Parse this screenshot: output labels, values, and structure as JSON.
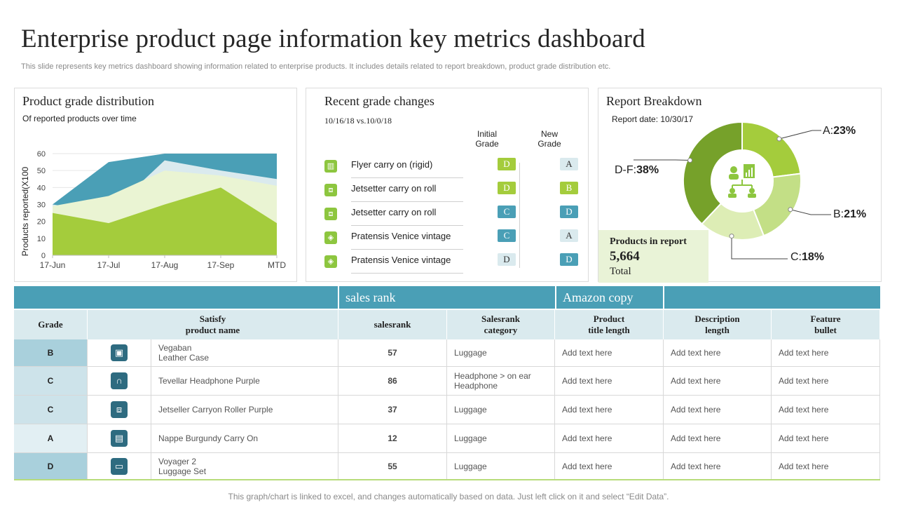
{
  "header": {
    "title": "Enterprise product page information key metrics dashboard",
    "subtitle": "This slide represents key metrics dashboard showing information related to enterprise products. It includes details related to report breakdown, product grade distribution etc."
  },
  "grade_distribution": {
    "title": "Product grade distribution",
    "subtitle": "Of reported products over time"
  },
  "chart_data": {
    "type": "area",
    "categories": [
      "17-Jun",
      "17-Jul",
      "17-Aug",
      "17-Sep",
      "MTD"
    ],
    "ylabel": "Products reported(X100",
    "ylim": [
      0,
      60
    ],
    "yticks": [
      0,
      10,
      20,
      30,
      40,
      50,
      60
    ],
    "grid": true,
    "series": [
      {
        "values": [
          30,
          55,
          60,
          60,
          60
        ],
        "color": "#4a9fb6"
      },
      {
        "values": [
          30,
          25,
          56,
          50,
          45
        ],
        "color": "#daeaee"
      },
      {
        "values": [
          29,
          35,
          50,
          47,
          41
        ],
        "color": "#eaf4d3"
      },
      {
        "values": [
          25,
          19,
          30,
          40,
          19
        ],
        "color": "#a4cc3c"
      }
    ]
  },
  "grade_changes": {
    "title": "Recent grade changes",
    "date_range": "10/16/18 vs.10/0/18",
    "initial_header": "Initial\nGrade",
    "new_header": "New\nGrade",
    "rows": [
      {
        "icon": "suitcase-icon",
        "glyph": "▥",
        "name": "Flyer carry on (rigid)",
        "initial": "D",
        "new": "A",
        "initial_style": "green",
        "new_style": "light"
      },
      {
        "icon": "luggage-icon",
        "glyph": "⧈",
        "name": "Jetsetter carry on roll",
        "initial": "D",
        "new": "B",
        "initial_style": "green",
        "new_style": "green"
      },
      {
        "icon": "luggage-icon",
        "glyph": "⧈",
        "name": "Jetsetter carry on roll",
        "initial": "C",
        "new": "D",
        "initial_style": "blue",
        "new_style": "blue"
      },
      {
        "icon": "tag-icon",
        "glyph": "◈",
        "name": "Pratensis Venice vintage",
        "initial": "C",
        "new": "A",
        "initial_style": "blue",
        "new_style": "light"
      },
      {
        "icon": "tag-icon",
        "glyph": "◈",
        "name": "Pratensis Venice vintage",
        "initial": "D",
        "new": "D",
        "initial_style": "light",
        "new_style": "blue"
      }
    ]
  },
  "report_breakdown": {
    "title": "Report Breakdown",
    "report_date": "Report date:  10/30/17",
    "slices": [
      {
        "label": "A:",
        "pct": "23%",
        "value": 23,
        "color": "#a4cc3c"
      },
      {
        "label": "B:",
        "pct": "21%",
        "value": 21,
        "color": "#c3df86"
      },
      {
        "label": "C:",
        "pct": "18%",
        "value": 18,
        "color": "#ddedb5"
      },
      {
        "label": "D-F:",
        "pct": "38%",
        "value": 38,
        "color": "#76a12a"
      }
    ],
    "products_title": "Products in report",
    "products_value": "5,664",
    "products_sub": "Total"
  },
  "table": {
    "band": {
      "sales_rank": "sales rank",
      "amazon_copy": "Amazon copy"
    },
    "headers": [
      "Grade",
      "Satisfy\nproduct name",
      "salesrank",
      "Salesrank\ncategory",
      "Product\ntitle length",
      "Description\nlength",
      "Feature\nbullet"
    ],
    "rows": [
      {
        "grade": "B",
        "icon": "briefcase-icon",
        "glyph": "▣",
        "name": "Vegaban\nLeather Case",
        "rank": "57",
        "category": "Luggage",
        "title_len": "Add text here",
        "desc_len": "Add text here",
        "bullet": "Add text here",
        "grade_bg": "#a9d0dc"
      },
      {
        "grade": "C",
        "icon": "headphones-icon",
        "glyph": "∩",
        "name": "Tevellar Headphone Purple",
        "rank": "86",
        "category": "Headphone > on ear\nHeadphone",
        "title_len": "Add text here",
        "desc_len": "Add text here",
        "bullet": "Add text here",
        "grade_bg": "#cde3ea"
      },
      {
        "grade": "C",
        "icon": "luggage-icon",
        "glyph": "⧈",
        "name": "Jetseller Carryon Roller Purple",
        "rank": "37",
        "category": "Luggage",
        "title_len": "Add text here",
        "desc_len": "Add text here",
        "bullet": "Add text here",
        "grade_bg": "#cde3ea"
      },
      {
        "grade": "A",
        "icon": "bags-icon",
        "glyph": "▤",
        "name": "Nappe Burgundy Carry On",
        "rank": "12",
        "category": "Luggage",
        "title_len": "Add text here",
        "desc_len": "Add text here",
        "bullet": "Add text here",
        "grade_bg": "#e2eff3"
      },
      {
        "grade": "D",
        "icon": "case-icon",
        "glyph": "▭",
        "name": "Voyager 2\nLuggage Set",
        "rank": "55",
        "category": "Luggage",
        "title_len": "Add text here",
        "desc_len": "Add text here",
        "bullet": "Add text here",
        "grade_bg": "#a9d0dc"
      }
    ]
  },
  "footer": "This graph/chart is linked to excel,  and changes automatically based on data. Just left click on it and select “Edit Data”."
}
